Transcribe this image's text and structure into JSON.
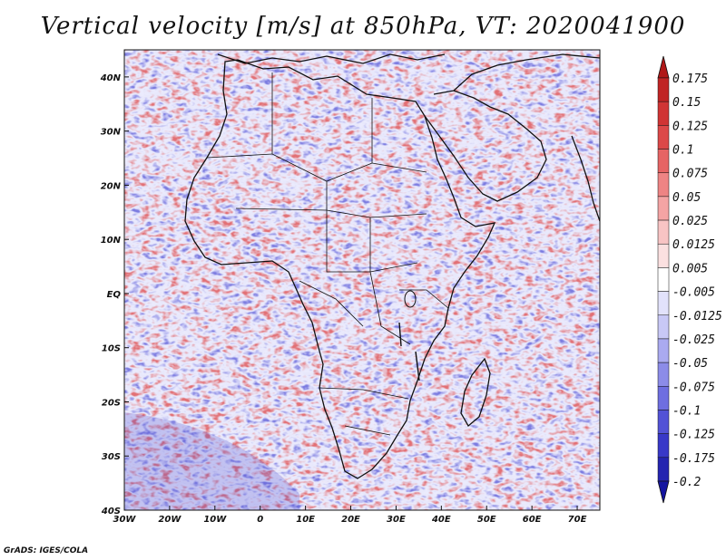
{
  "title": "Vertical velocity [m/s] at 850hPa, VT: 2020041900",
  "credit": "GrADS: IGES/COLA",
  "map": {
    "region": "Africa",
    "projection": "latlon",
    "lon_range": [
      -30,
      75
    ],
    "lat_range": [
      -40,
      45
    ],
    "lon_ticks": [
      "30W",
      "20W",
      "10W",
      "0",
      "10E",
      "20E",
      "30E",
      "40E",
      "50E",
      "60E",
      "70E"
    ],
    "lon_values": [
      -30,
      -20,
      -10,
      0,
      10,
      20,
      30,
      40,
      50,
      60,
      70
    ],
    "lat_ticks": [
      "40N",
      "30N",
      "20N",
      "10N",
      "EQ",
      "10S",
      "20S",
      "30S",
      "40S"
    ],
    "lat_values": [
      40,
      30,
      20,
      10,
      0,
      -10,
      -20,
      -30,
      -40
    ],
    "field_colors": {
      "positive": "#e04040",
      "negative": "#5050d8",
      "neutral": "#ffffff"
    }
  },
  "colorbar": {
    "labels": [
      "0.175",
      "0.15",
      "0.125",
      "0.1",
      "0.075",
      "0.05",
      "0.025",
      "0.0125",
      "0.005",
      "-0.005",
      "-0.0125",
      "-0.025",
      "-0.05",
      "-0.075",
      "-0.1",
      "-0.125",
      "-0.175",
      "-0.2"
    ],
    "colors": [
      "#b01818",
      "#c02424",
      "#d03434",
      "#dc4848",
      "#e66464",
      "#ee8484",
      "#f4a4a4",
      "#f8c4c4",
      "#fbe0e0",
      "#ffffff",
      "#e2e2fb",
      "#c8c8f6",
      "#aaaaf0",
      "#8c8ce8",
      "#6e6ee0",
      "#5252d6",
      "#3838c8",
      "#2424b0",
      "#1414a0"
    ]
  }
}
